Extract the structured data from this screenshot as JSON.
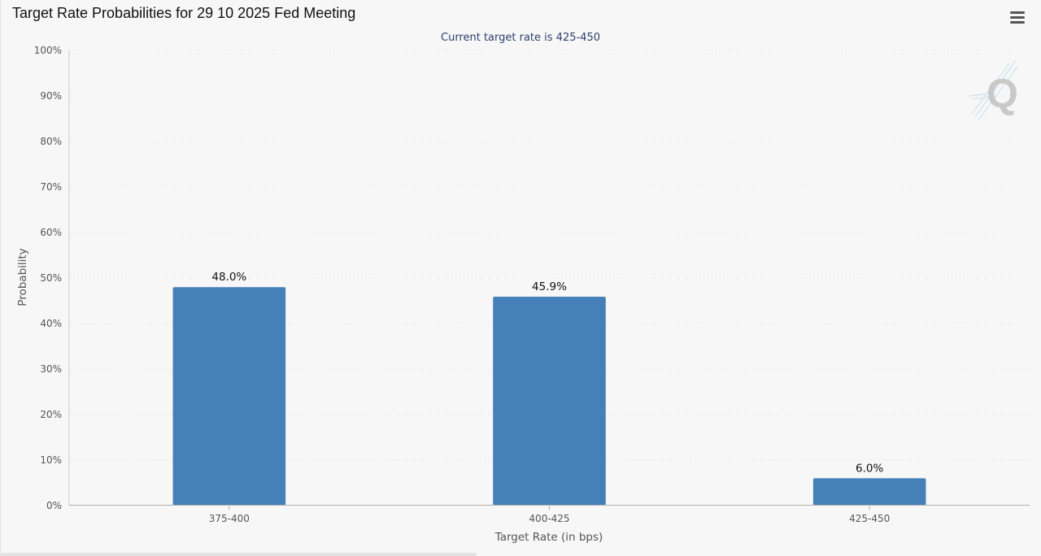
{
  "chart_data": {
    "type": "bar",
    "title": "Target Rate Probabilities for 29 10 2025 Fed Meeting",
    "subtitle": "Current target rate is 425-450",
    "xlabel": "Target Rate (in bps)",
    "ylabel": "Probability",
    "categories": [
      "375-400",
      "400-425",
      "425-450"
    ],
    "values": [
      48.0,
      45.9,
      6.0
    ],
    "data_labels": [
      "48.0%",
      "45.9%",
      "6.0%"
    ],
    "ylim": [
      0,
      100
    ],
    "yticks": [
      0,
      10,
      20,
      30,
      40,
      50,
      60,
      70,
      80,
      90,
      100
    ],
    "ytick_labels": [
      "0%",
      "10%",
      "20%",
      "30%",
      "40%",
      "50%",
      "60%",
      "70%",
      "80%",
      "90%",
      "100%"
    ],
    "grid": true,
    "legend": "none",
    "bar_color": "#4581b8"
  },
  "icons": {
    "menu": "hamburger-menu-icon",
    "watermark": "q-logo-watermark"
  },
  "colors": {
    "background": "#f7f7f7",
    "subtitle": "#2f3f6e",
    "axis_text": "#555555",
    "gridline": "#d8d8d8"
  }
}
